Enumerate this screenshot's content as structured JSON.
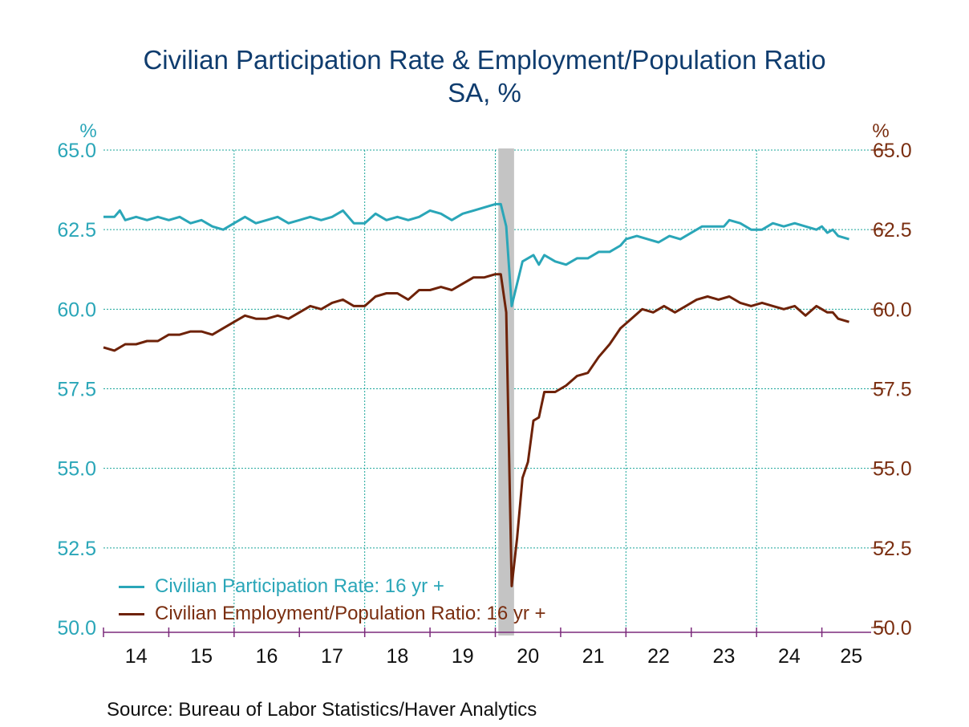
{
  "title": "Civilian Participation Rate & Employment/Population Ratio",
  "subtitle": "SA, %",
  "source": "Source:  Bureau of Labor Statistics/Haver Analytics",
  "colors": {
    "left_axis": "#2aa6b8",
    "right_axis": "#7a2e10",
    "participation": "#2aa6b8",
    "employment": "#6e2208",
    "grid": "#1aa59a",
    "recession": "#c4c4c4",
    "title": "#0f3c6e",
    "axis_line": "#7b2a7b"
  },
  "chart_data": {
    "type": "line",
    "title": "Civilian Participation Rate & Employment/Population Ratio",
    "subtitle": "SA, %",
    "y_left_label": "%",
    "y_right_label": "%",
    "ylim": [
      50,
      65
    ],
    "y_ticks": [
      "65.0",
      "62.5",
      "60.0",
      "57.5",
      "55.0",
      "52.5",
      "50.0"
    ],
    "x_tick_labels": [
      "14",
      "15",
      "16",
      "17",
      "18",
      "19",
      "20",
      "21",
      "22",
      "23",
      "24",
      "25"
    ],
    "x_range": [
      "2014-01",
      "2025-04"
    ],
    "grid": true,
    "legend_position": "bottom-left",
    "recession_shading": {
      "start": "2020-02",
      "end": "2020-04"
    },
    "series": [
      {
        "name": "Civilian Participation Rate: 16 yr +",
        "axis": "left",
        "points": [
          [
            "2014-01",
            62.9
          ],
          [
            "2014-03",
            62.9
          ],
          [
            "2014-04",
            63.1
          ],
          [
            "2014-05",
            62.8
          ],
          [
            "2014-07",
            62.9
          ],
          [
            "2014-09",
            62.8
          ],
          [
            "2014-11",
            62.9
          ],
          [
            "2015-01",
            62.8
          ],
          [
            "2015-03",
            62.9
          ],
          [
            "2015-05",
            62.7
          ],
          [
            "2015-07",
            62.8
          ],
          [
            "2015-09",
            62.6
          ],
          [
            "2015-11",
            62.5
          ],
          [
            "2016-01",
            62.7
          ],
          [
            "2016-03",
            62.9
          ],
          [
            "2016-05",
            62.7
          ],
          [
            "2016-07",
            62.8
          ],
          [
            "2016-09",
            62.9
          ],
          [
            "2016-11",
            62.7
          ],
          [
            "2017-01",
            62.8
          ],
          [
            "2017-03",
            62.9
          ],
          [
            "2017-05",
            62.8
          ],
          [
            "2017-07",
            62.9
          ],
          [
            "2017-09",
            63.1
          ],
          [
            "2017-11",
            62.7
          ],
          [
            "2018-01",
            62.7
          ],
          [
            "2018-03",
            63.0
          ],
          [
            "2018-05",
            62.8
          ],
          [
            "2018-07",
            62.9
          ],
          [
            "2018-09",
            62.8
          ],
          [
            "2018-11",
            62.9
          ],
          [
            "2019-01",
            63.1
          ],
          [
            "2019-03",
            63.0
          ],
          [
            "2019-05",
            62.8
          ],
          [
            "2019-07",
            63.0
          ],
          [
            "2019-09",
            63.1
          ],
          [
            "2019-11",
            63.2
          ],
          [
            "2020-01",
            63.3
          ],
          [
            "2020-02",
            63.3
          ],
          [
            "2020-03",
            62.6
          ],
          [
            "2020-04",
            60.1
          ],
          [
            "2020-05",
            60.8
          ],
          [
            "2020-06",
            61.5
          ],
          [
            "2020-08",
            61.7
          ],
          [
            "2020-09",
            61.4
          ],
          [
            "2020-10",
            61.7
          ],
          [
            "2020-12",
            61.5
          ],
          [
            "2021-02",
            61.4
          ],
          [
            "2021-04",
            61.6
          ],
          [
            "2021-06",
            61.6
          ],
          [
            "2021-08",
            61.8
          ],
          [
            "2021-10",
            61.8
          ],
          [
            "2021-12",
            62.0
          ],
          [
            "2022-01",
            62.2
          ],
          [
            "2022-03",
            62.3
          ],
          [
            "2022-05",
            62.2
          ],
          [
            "2022-07",
            62.1
          ],
          [
            "2022-09",
            62.3
          ],
          [
            "2022-11",
            62.2
          ],
          [
            "2023-01",
            62.4
          ],
          [
            "2023-03",
            62.6
          ],
          [
            "2023-05",
            62.6
          ],
          [
            "2023-07",
            62.6
          ],
          [
            "2023-08",
            62.8
          ],
          [
            "2023-10",
            62.7
          ],
          [
            "2023-12",
            62.5
          ],
          [
            "2024-02",
            62.5
          ],
          [
            "2024-04",
            62.7
          ],
          [
            "2024-06",
            62.6
          ],
          [
            "2024-08",
            62.7
          ],
          [
            "2024-10",
            62.6
          ],
          [
            "2024-12",
            62.5
          ],
          [
            "2025-01",
            62.6
          ],
          [
            "2025-02",
            62.4
          ],
          [
            "2025-03",
            62.5
          ],
          [
            "2025-04",
            62.3
          ],
          [
            "2025-06",
            62.2
          ]
        ]
      },
      {
        "name": "Civilian Employment/Population Ratio: 16 yr +",
        "axis": "right",
        "points": [
          [
            "2014-01",
            58.8
          ],
          [
            "2014-03",
            58.7
          ],
          [
            "2014-05",
            58.9
          ],
          [
            "2014-07",
            58.9
          ],
          [
            "2014-09",
            59.0
          ],
          [
            "2014-11",
            59.0
          ],
          [
            "2015-01",
            59.2
          ],
          [
            "2015-03",
            59.2
          ],
          [
            "2015-05",
            59.3
          ],
          [
            "2015-07",
            59.3
          ],
          [
            "2015-09",
            59.2
          ],
          [
            "2015-11",
            59.4
          ],
          [
            "2016-01",
            59.6
          ],
          [
            "2016-03",
            59.8
          ],
          [
            "2016-05",
            59.7
          ],
          [
            "2016-07",
            59.7
          ],
          [
            "2016-09",
            59.8
          ],
          [
            "2016-11",
            59.7
          ],
          [
            "2017-01",
            59.9
          ],
          [
            "2017-03",
            60.1
          ],
          [
            "2017-05",
            60.0
          ],
          [
            "2017-07",
            60.2
          ],
          [
            "2017-09",
            60.3
          ],
          [
            "2017-11",
            60.1
          ],
          [
            "2018-01",
            60.1
          ],
          [
            "2018-03",
            60.4
          ],
          [
            "2018-05",
            60.5
          ],
          [
            "2018-07",
            60.5
          ],
          [
            "2018-09",
            60.3
          ],
          [
            "2018-11",
            60.6
          ],
          [
            "2019-01",
            60.6
          ],
          [
            "2019-03",
            60.7
          ],
          [
            "2019-05",
            60.6
          ],
          [
            "2019-07",
            60.8
          ],
          [
            "2019-09",
            61.0
          ],
          [
            "2019-11",
            61.0
          ],
          [
            "2020-01",
            61.1
          ],
          [
            "2020-02",
            61.1
          ],
          [
            "2020-03",
            59.9
          ],
          [
            "2020-04",
            51.3
          ],
          [
            "2020-05",
            52.8
          ],
          [
            "2020-06",
            54.7
          ],
          [
            "2020-07",
            55.2
          ],
          [
            "2020-08",
            56.5
          ],
          [
            "2020-09",
            56.6
          ],
          [
            "2020-10",
            57.4
          ],
          [
            "2020-12",
            57.4
          ],
          [
            "2021-02",
            57.6
          ],
          [
            "2021-04",
            57.9
          ],
          [
            "2021-06",
            58.0
          ],
          [
            "2021-08",
            58.5
          ],
          [
            "2021-10",
            58.9
          ],
          [
            "2021-12",
            59.4
          ],
          [
            "2022-02",
            59.7
          ],
          [
            "2022-04",
            60.0
          ],
          [
            "2022-06",
            59.9
          ],
          [
            "2022-08",
            60.1
          ],
          [
            "2022-10",
            59.9
          ],
          [
            "2022-12",
            60.1
          ],
          [
            "2023-02",
            60.3
          ],
          [
            "2023-04",
            60.4
          ],
          [
            "2023-06",
            60.3
          ],
          [
            "2023-08",
            60.4
          ],
          [
            "2023-10",
            60.2
          ],
          [
            "2023-12",
            60.1
          ],
          [
            "2024-02",
            60.2
          ],
          [
            "2024-04",
            60.1
          ],
          [
            "2024-06",
            60.0
          ],
          [
            "2024-08",
            60.1
          ],
          [
            "2024-10",
            59.8
          ],
          [
            "2024-12",
            60.1
          ],
          [
            "2025-02",
            59.9
          ],
          [
            "2025-03",
            59.9
          ],
          [
            "2025-04",
            59.7
          ],
          [
            "2025-06",
            59.6
          ]
        ]
      }
    ]
  }
}
